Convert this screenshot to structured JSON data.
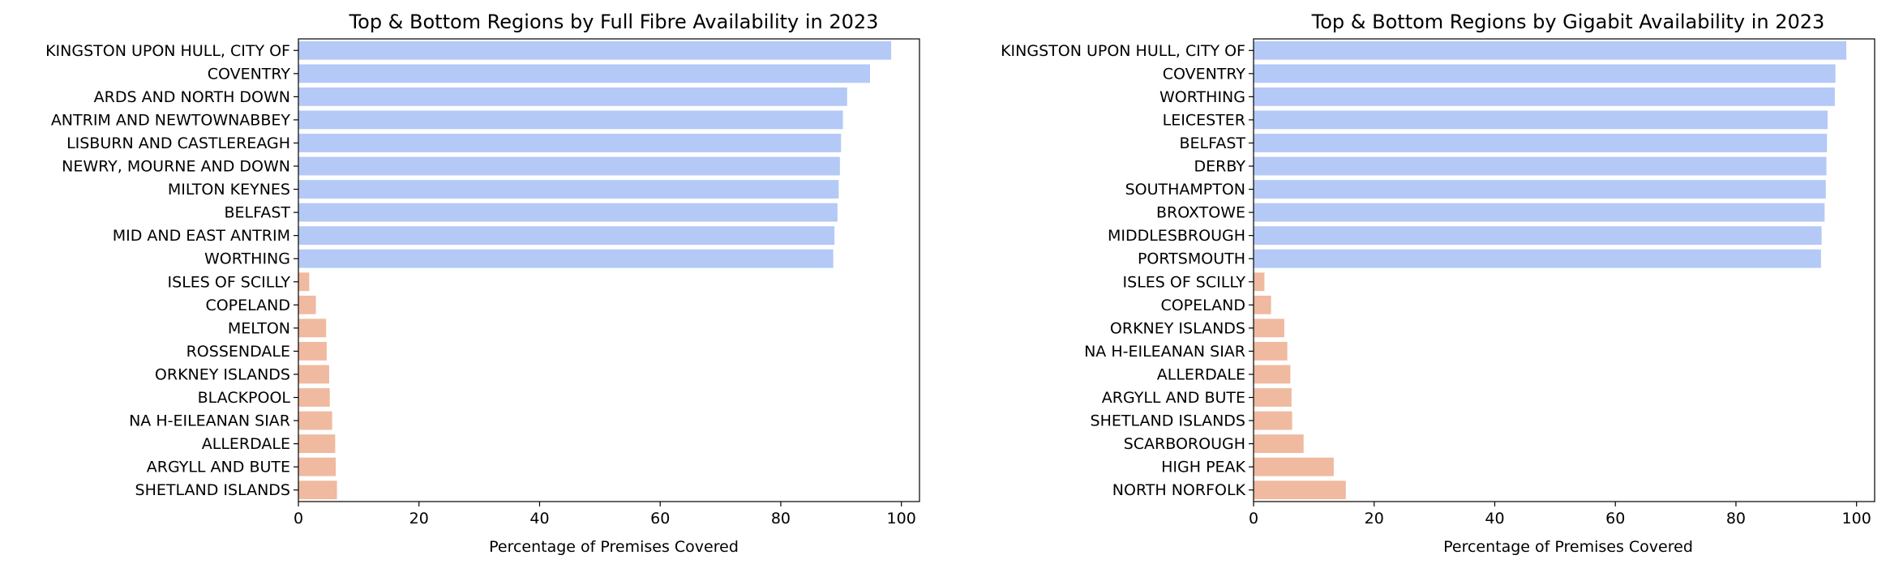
{
  "colors": {
    "top": "#b4c9f6",
    "bottom": "#efbaa0",
    "axis": "#000000"
  },
  "chart_data": [
    {
      "type": "bar",
      "orientation": "horizontal",
      "title": "Top & Bottom Regions by Full Fibre Availability in 2023",
      "xlabel": "Percentage of Premises Covered",
      "ylabel": "",
      "xlim": [
        0,
        103
      ],
      "xticks": [
        "0",
        "20",
        "40",
        "60",
        "80",
        "100"
      ],
      "grid": false,
      "categories": [
        "KINGSTON UPON HULL, CITY OF",
        "COVENTRY",
        "ARDS AND NORTH DOWN",
        "ANTRIM AND NEWTOWNABBEY",
        "LISBURN AND CASTLEREAGH",
        "NEWRY, MOURNE AND DOWN",
        "MILTON KEYNES",
        "BELFAST",
        "MID AND EAST ANTRIM",
        "WORTHING",
        "ISLES OF SCILLY",
        "COPELAND",
        "MELTON",
        "ROSSENDALE",
        "ORKNEY ISLANDS",
        "BLACKPOOL",
        "NA H-EILEANAN SIAR",
        "ALLERDALE",
        "ARGYLL AND BUTE",
        "SHETLAND ISLANDS"
      ],
      "values": [
        98.3,
        94.8,
        91.0,
        90.3,
        90.0,
        89.8,
        89.6,
        89.4,
        88.9,
        88.7,
        1.8,
        2.9,
        4.6,
        4.7,
        5.1,
        5.2,
        5.6,
        6.1,
        6.2,
        6.4
      ],
      "groups": [
        "top",
        "top",
        "top",
        "top",
        "top",
        "top",
        "top",
        "top",
        "top",
        "top",
        "bottom",
        "bottom",
        "bottom",
        "bottom",
        "bottom",
        "bottom",
        "bottom",
        "bottom",
        "bottom",
        "bottom"
      ]
    },
    {
      "type": "bar",
      "orientation": "horizontal",
      "title": "Top & Bottom Regions by Gigabit Availability in 2023",
      "xlabel": "Percentage of Premises Covered",
      "ylabel": "",
      "xlim": [
        0,
        103
      ],
      "xticks": [
        "0",
        "20",
        "40",
        "60",
        "80",
        "100"
      ],
      "grid": false,
      "categories": [
        "KINGSTON UPON HULL, CITY OF",
        "COVENTRY",
        "WORTHING",
        "LEICESTER",
        "BELFAST",
        "DERBY",
        "SOUTHAMPTON",
        "BROXTOWE",
        "MIDDLESBROUGH",
        "PORTSMOUTH",
        "ISLES OF SCILLY",
        "COPELAND",
        "ORKNEY ISLANDS",
        "NA H-EILEANAN SIAR",
        "ALLERDALE",
        "ARGYLL AND BUTE",
        "SHETLAND ISLANDS",
        "SCARBOROUGH",
        "HIGH PEAK",
        "NORTH NORFOLK"
      ],
      "values": [
        98.3,
        96.5,
        96.4,
        95.2,
        95.1,
        95.0,
        94.9,
        94.7,
        94.2,
        94.1,
        1.8,
        2.9,
        5.1,
        5.6,
        6.1,
        6.3,
        6.4,
        8.3,
        13.3,
        15.3
      ],
      "groups": [
        "top",
        "top",
        "top",
        "top",
        "top",
        "top",
        "top",
        "top",
        "top",
        "top",
        "bottom",
        "bottom",
        "bottom",
        "bottom",
        "bottom",
        "bottom",
        "bottom",
        "bottom",
        "bottom",
        "bottom"
      ]
    }
  ]
}
